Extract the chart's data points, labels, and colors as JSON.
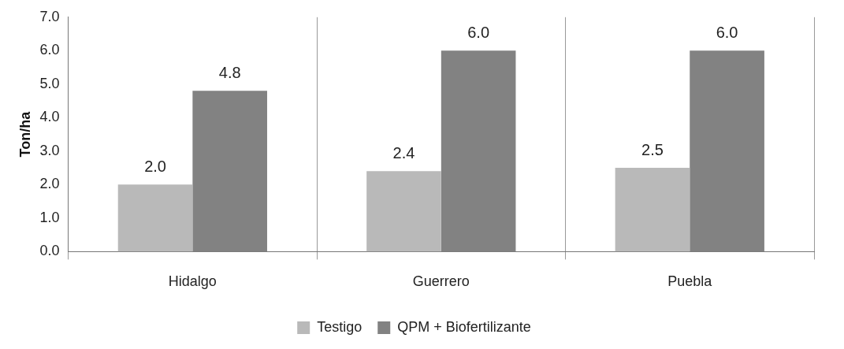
{
  "chart_data": {
    "type": "bar",
    "ylabel": "Ton/ha",
    "categories": [
      "Hidalgo",
      "Guerrero",
      "Puebla"
    ],
    "series": [
      {
        "name": "Testigo",
        "color": "#b9b9b9",
        "values": [
          2.0,
          2.4,
          2.5
        ],
        "value_labels": [
          "2.0",
          "2.4",
          "2.5"
        ]
      },
      {
        "name": "QPM + Biofertilizante",
        "color": "#828282",
        "values": [
          4.8,
          6.0,
          6.0
        ],
        "value_labels": [
          "4.8",
          "6.0",
          "6.0"
        ]
      }
    ],
    "ylim": [
      0,
      7
    ],
    "yticks": [
      {
        "value": 0,
        "label": "0.0"
      },
      {
        "value": 1,
        "label": "1.0"
      },
      {
        "value": 2,
        "label": "2.0"
      },
      {
        "value": 3,
        "label": "3.0"
      },
      {
        "value": 4,
        "label": "4.0"
      },
      {
        "value": 5,
        "label": "5.0"
      },
      {
        "value": 6,
        "label": "6.0"
      },
      {
        "value": 7,
        "label": "7.0"
      }
    ],
    "grid": "x",
    "legend": "bottom"
  }
}
